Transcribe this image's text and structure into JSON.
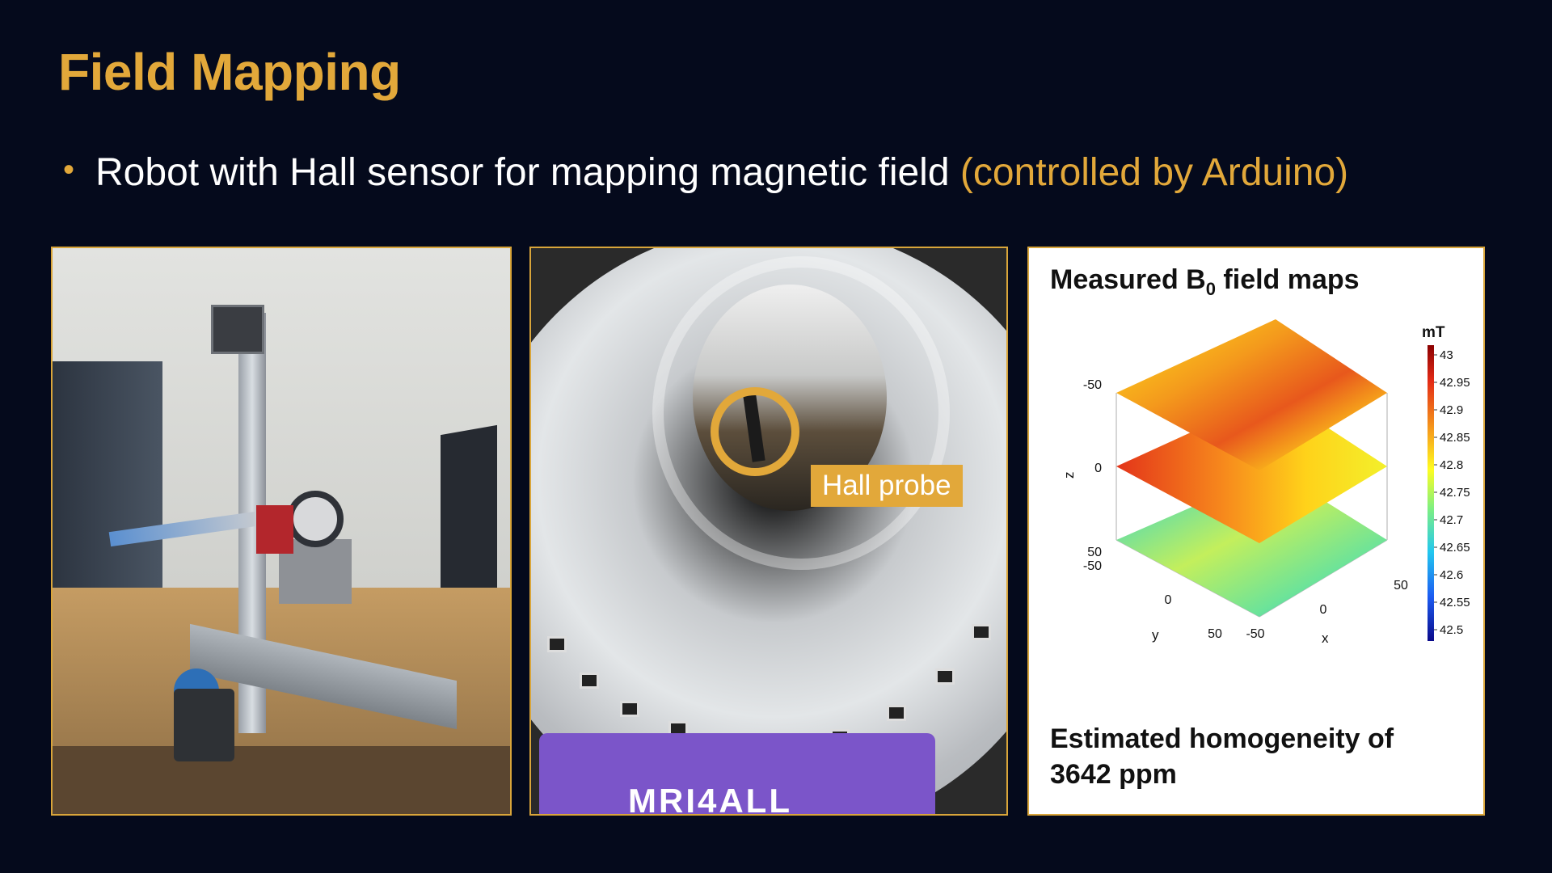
{
  "slide": {
    "title": "Field Mapping",
    "bullet_main": "Robot with Hall sensor for mapping magnetic field",
    "bullet_accent": "(controlled by Arduino)"
  },
  "photo_bore": {
    "label": "Hall probe",
    "base_text": "MRI4ALL"
  },
  "field_map": {
    "title_main": "Measured B",
    "title_sub": "0",
    "title_rest": " field maps",
    "footer_line1": "Estimated homogeneity of",
    "footer_line2": "3642 ppm",
    "colorbar_unit": "mT",
    "colorbar_ticks": [
      "43",
      "42.95",
      "42.9",
      "42.85",
      "42.8",
      "42.75",
      "42.7",
      "42.65",
      "42.6",
      "42.55",
      "42.5"
    ],
    "z_axis_label": "z",
    "x_axis_label": "x",
    "y_axis_label": "y",
    "z_ticks": [
      "-50",
      "0",
      "50"
    ],
    "y_ticks": [
      "-50",
      "0",
      "50"
    ],
    "x_ticks": [
      "-50",
      "0",
      "50"
    ],
    "slices": [
      {
        "z": "-50",
        "colors": [
          "#f4a21c",
          "#ffd21a",
          "#f08a1d",
          "#e8561c",
          "#ffe21c",
          "#2a8af0"
        ]
      },
      {
        "z": "0",
        "colors": [
          "#e33a16",
          "#f5741c",
          "#ffbd1a",
          "#ffe21c",
          "#ffe81d",
          "#f3f02b"
        ]
      },
      {
        "z": "50",
        "colors": [
          "#25d2d6",
          "#6be39a",
          "#c3ef5c",
          "#a8ec63",
          "#37c7e8",
          "#1f6ff2"
        ]
      }
    ]
  }
}
